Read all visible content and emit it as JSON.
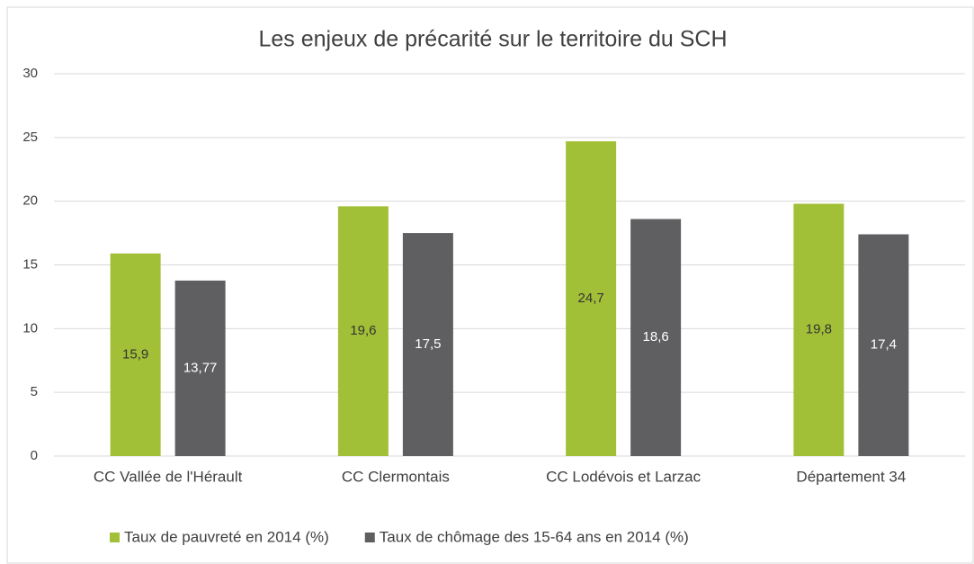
{
  "chart_data": {
    "type": "bar",
    "title": "Les enjeux de précarité sur le territoire du SCH",
    "categories": [
      "CC Vallée de l'Hérault",
      "CC Clermontais",
      "CC Lodévois et Larzac",
      "Département 34"
    ],
    "series": [
      {
        "name": "Taux de pauvreté en 2014 (%)",
        "color": "#a2c037",
        "values": [
          15.9,
          19.6,
          24.7,
          19.8
        ],
        "value_labels": [
          "15,9",
          "19,6",
          "24,7",
          "19,8"
        ]
      },
      {
        "name": "Taux de chômage des 15-64 ans en 2014 (%)",
        "color": "#5f5f61",
        "values": [
          13.77,
          17.5,
          18.6,
          17.4
        ],
        "value_labels": [
          "13,77",
          "17,5",
          "18,6",
          "17,4"
        ]
      }
    ],
    "ylim": [
      0,
      30
    ],
    "yticks": [
      0,
      5,
      10,
      15,
      20,
      25,
      30
    ],
    "grid": true,
    "legend": "bottom"
  }
}
